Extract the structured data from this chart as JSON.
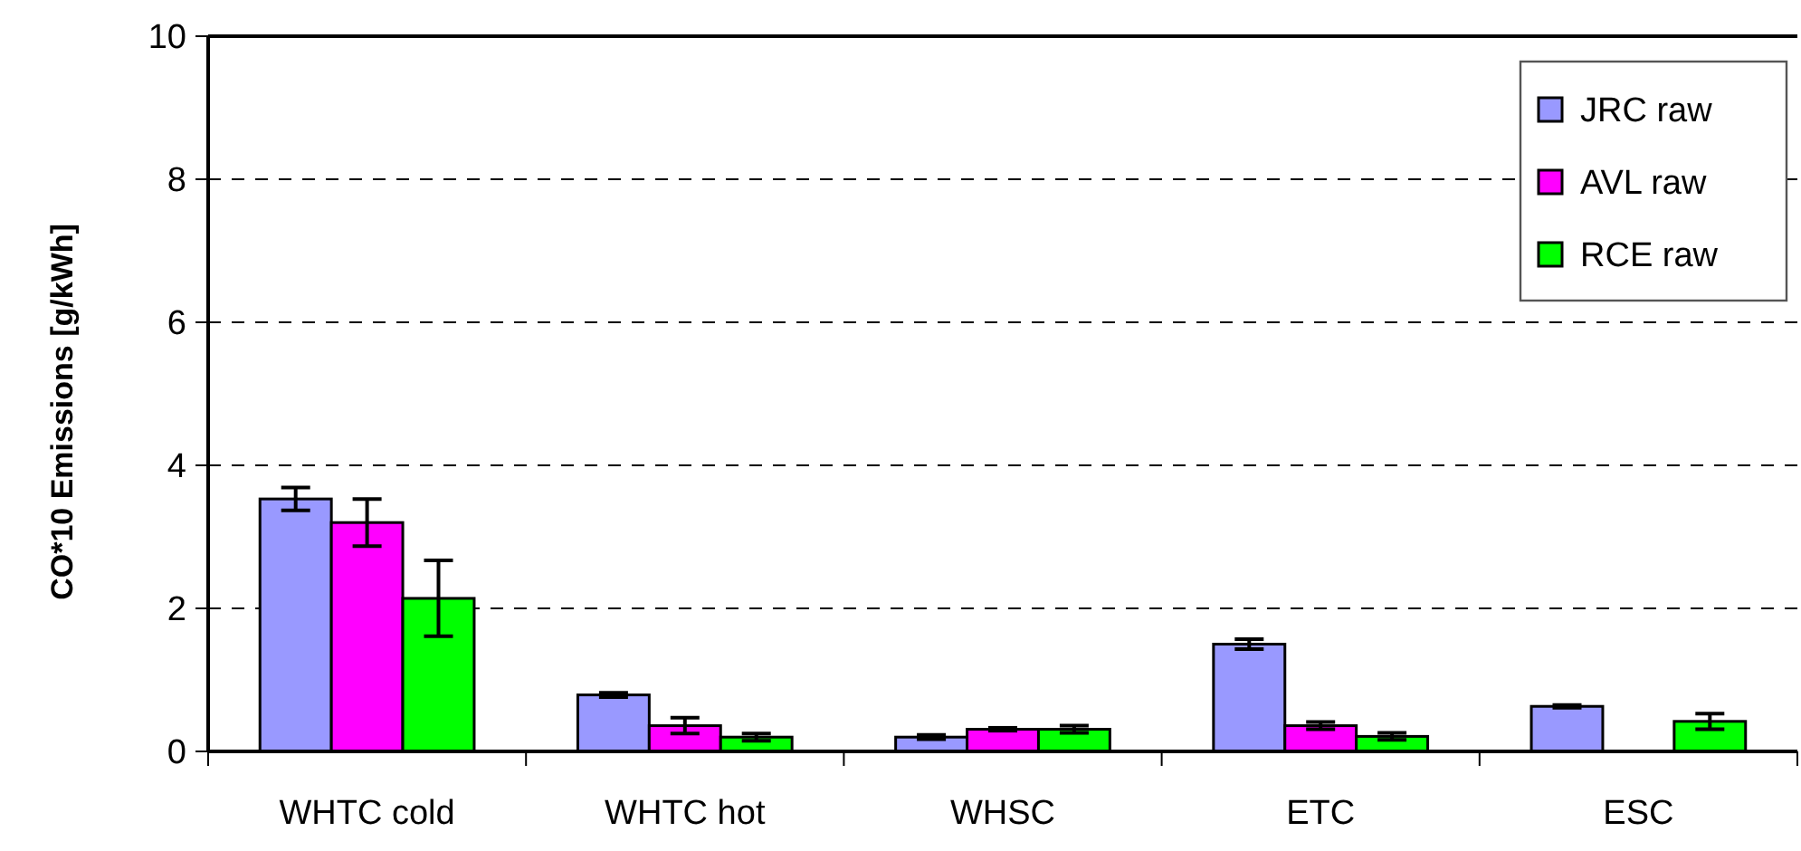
{
  "chart_data": {
    "type": "bar",
    "ylabel": "CO*10 Emissions [g/kWh]",
    "categories": [
      "WHTC cold",
      "WHTC hot",
      "WHSC",
      "ETC",
      "ESC"
    ],
    "series": [
      {
        "name": "JRC raw",
        "color": "#9999ff",
        "values": [
          3.53,
          0.79,
          0.2,
          1.5,
          0.63
        ],
        "errors": [
          0.16,
          0.03,
          0.03,
          0.07,
          0.02
        ]
      },
      {
        "name": "AVL raw",
        "color": "#ff00ff",
        "values": [
          3.2,
          0.36,
          0.31,
          0.36,
          null
        ],
        "errors": [
          0.33,
          0.11,
          0.02,
          0.05,
          null
        ]
      },
      {
        "name": "RCE raw",
        "color": "#00ff00",
        "values": [
          2.14,
          0.2,
          0.31,
          0.21,
          0.42
        ],
        "errors": [
          0.53,
          0.05,
          0.05,
          0.05,
          0.11
        ]
      }
    ],
    "ylim": [
      0,
      10
    ],
    "yticks": [
      0,
      2,
      4,
      6,
      8,
      10
    ],
    "grid": "y",
    "legend": "top right"
  }
}
